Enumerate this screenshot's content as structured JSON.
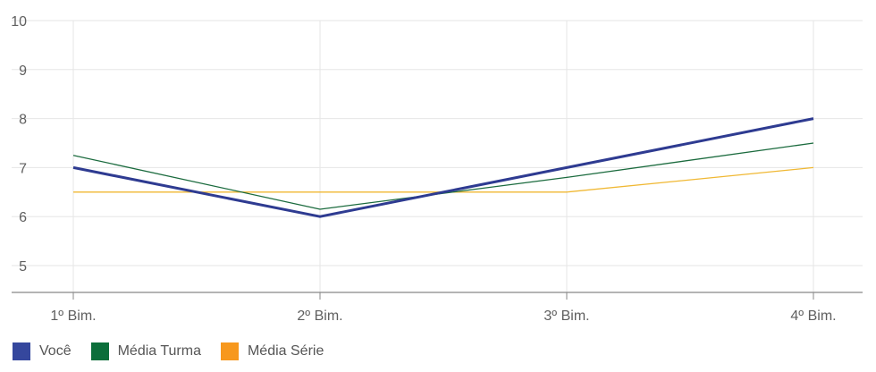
{
  "chart_data": {
    "type": "line",
    "categories": [
      "1º Bim.",
      "2º Bim.",
      "3º Bim.",
      "4º Bim."
    ],
    "ylim": [
      4.5,
      10
    ],
    "yticks": [
      5,
      6,
      7,
      8,
      9,
      10
    ],
    "grid": true,
    "legend_position": "bottom-left",
    "series": [
      {
        "name": "Média Série",
        "color": "#f0b833",
        "swatch_color": "#f7981d",
        "width": "thin",
        "values": [
          6.5,
          6.5,
          6.5,
          7.0
        ]
      },
      {
        "name": "Média Turma",
        "color": "#1b6b3e",
        "swatch_color": "#0b6e3a",
        "width": "thin",
        "values": [
          7.25,
          6.15,
          6.8,
          7.5
        ]
      },
      {
        "name": "Você",
        "color": "#2e3b91",
        "swatch_color": "#35479d",
        "width": "thick",
        "values": [
          7.0,
          6.0,
          7.0,
          8.0
        ]
      }
    ],
    "legend_order": [
      "Você",
      "Média Turma",
      "Média Série"
    ]
  }
}
